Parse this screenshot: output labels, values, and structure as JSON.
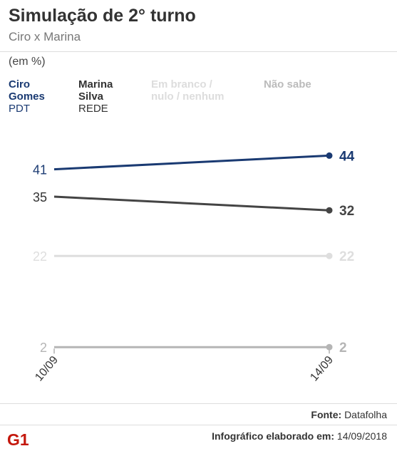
{
  "header": {
    "title": "Simulação de 2° turno",
    "subtitle": "Ciro x Marina",
    "unit": "(em %)"
  },
  "legend": [
    {
      "name": "Ciro Gomes",
      "name_lines": [
        "Ciro",
        "Gomes"
      ],
      "party": "PDT",
      "color": "#1a3a72"
    },
    {
      "name": "Marina Silva",
      "name_lines": [
        "Marina",
        "Silva"
      ],
      "party": "REDE",
      "color": "#333333"
    },
    {
      "name": "Em branco / nulo / nenhum",
      "name_lines": [
        "Em branco /",
        "nulo / nenhum"
      ],
      "party": "",
      "color": "#dddddd"
    },
    {
      "name": "Não sabe",
      "name_lines": [
        "Não sabe"
      ],
      "party": "",
      "color": "#bbbbbb"
    }
  ],
  "chart_data": {
    "type": "line",
    "x": [
      "10/09",
      "14/09"
    ],
    "ylim": [
      0,
      50
    ],
    "grid": false,
    "series": [
      {
        "name": "Ciro Gomes",
        "values": [
          41,
          44
        ],
        "color": "#1a3a72"
      },
      {
        "name": "Marina Silva",
        "values": [
          35,
          32
        ],
        "color": "#444444"
      },
      {
        "name": "Em branco / nulo / nenhum",
        "values": [
          22,
          22
        ],
        "color": "#dedede"
      },
      {
        "name": "Não sabe",
        "values": [
          2,
          2
        ],
        "color": "#b5b5b5"
      }
    ]
  },
  "footer": {
    "source_label": "Fonte:",
    "source_value": "Datafolha",
    "credit_label": "Infográfico elaborado em:",
    "credit_date": "14/09/2018",
    "logo_text": "G1",
    "logo_color": "#c4170c"
  }
}
